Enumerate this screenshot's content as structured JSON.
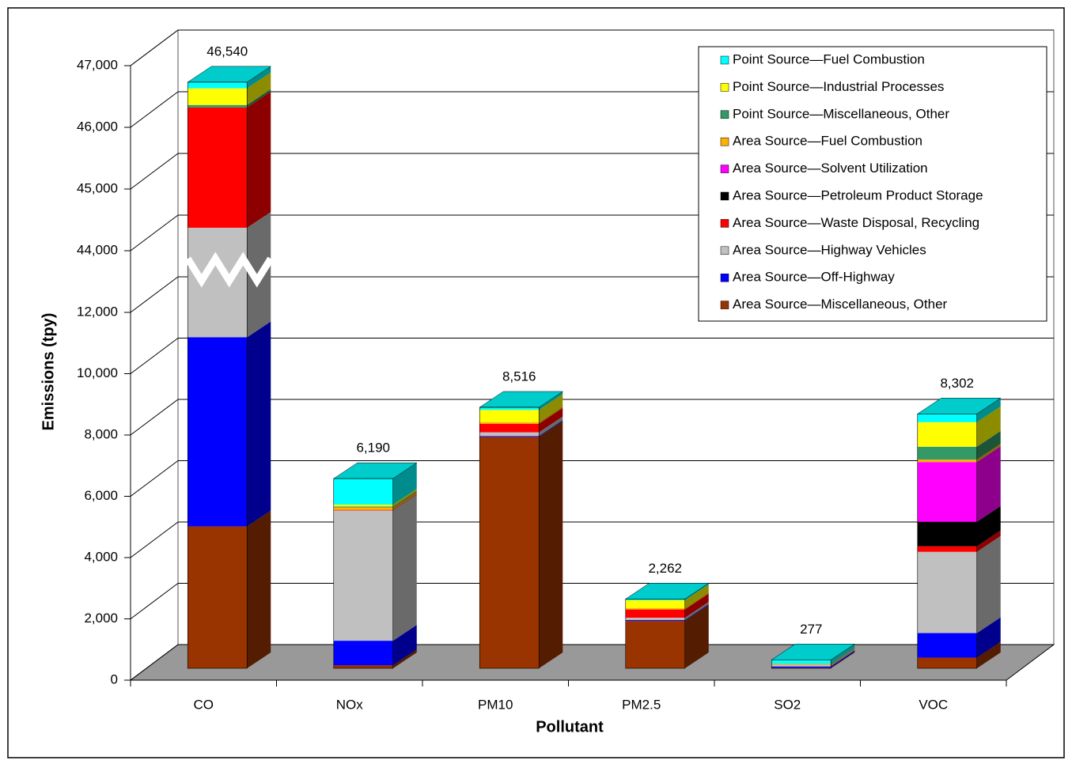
{
  "chart_data": {
    "type": "bar3d_stacked",
    "x_label": "Pollutant",
    "y_label": "Emissions (tpy)",
    "categories": [
      "CO",
      "NOx",
      "PM10",
      "PM2.5",
      "SO2",
      "VOC"
    ],
    "series": [
      {
        "name": "Area Source—Miscellaneous, Other",
        "color": "#993300",
        "values": [
          4630,
          100,
          7550,
          1550,
          20,
          350
        ]
      },
      {
        "name": "Area Source—Off-Highway",
        "color": "#0000ff",
        "values": [
          6170,
          800,
          30,
          30,
          40,
          800
        ]
      },
      {
        "name": "Area Source—Highway Vehicles",
        "color": "#c0c0c0",
        "values": [
          33380,
          4250,
          120,
          70,
          60,
          2650
        ]
      },
      {
        "name": "Area Source—Waste Disposal, Recycling",
        "color": "#ff0000",
        "values": [
          1950,
          20,
          280,
          270,
          0,
          180
        ]
      },
      {
        "name": "Area Source—Petroleum Product Storage",
        "color": "#000000",
        "values": [
          0,
          0,
          0,
          0,
          0,
          800
        ]
      },
      {
        "name": "Area Source—Solvent Utilization",
        "color": "#ff00ff",
        "values": [
          0,
          0,
          0,
          0,
          0,
          1950
        ]
      },
      {
        "name": "Area Source—Fuel Combustion",
        "color": "#ffb000",
        "values": [
          0,
          80,
          50,
          40,
          30,
          80
        ]
      },
      {
        "name": "Point Source—Miscellaneous, Other",
        "color": "#339966",
        "values": [
          40,
          30,
          0,
          0,
          0,
          420
        ]
      },
      {
        "name": "Point Source—Industrial Processes",
        "color": "#ffff00",
        "values": [
          270,
          60,
          400,
          260,
          0,
          800
        ]
      },
      {
        "name": "Point Source—Fuel Combustion",
        "color": "#00ffff",
        "values": [
          100,
          850,
          86,
          42,
          127,
          272
        ]
      }
    ],
    "totals": {
      "values": [
        46540,
        6190,
        8516,
        2262,
        277,
        8302
      ],
      "value_labels": [
        "46,540",
        "6,190",
        "8,516",
        "2,262",
        "277",
        "8,302"
      ]
    },
    "ylim": [
      0,
      47000
    ],
    "y_break": [
      12000,
      44000
    ],
    "yticks": [
      0,
      {
        "value": 2000,
        "label": "2,000"
      },
      {
        "value": 4000,
        "label": "4,000"
      },
      {
        "value": 6000,
        "label": "6,000"
      },
      {
        "value": 8000,
        "label": "8,000"
      },
      {
        "value": 10000,
        "label": "10,000"
      },
      {
        "value": 12000,
        "label": "12,000"
      },
      {
        "value": 44000,
        "label": "44,000"
      },
      {
        "value": 45000,
        "label": "45,000"
      },
      {
        "value": 46000,
        "label": "46,000"
      },
      {
        "value": 47000,
        "label": "47,000"
      }
    ],
    "grid": true,
    "legend": "top-right"
  }
}
